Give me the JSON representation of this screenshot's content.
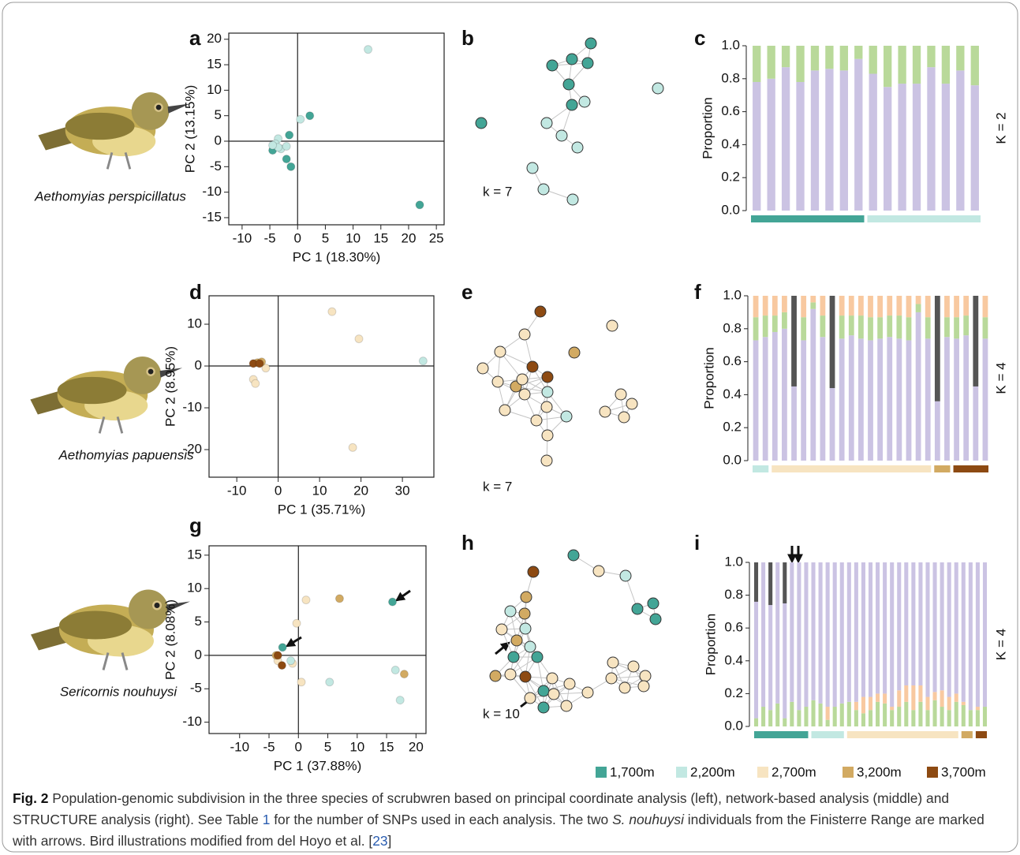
{
  "species": [
    "Aethomyias perspicillatus",
    "Aethomyias papuensis",
    "Sericornis nouhuysi"
  ],
  "legend": [
    {
      "label": "1,700m",
      "color": "#43a596"
    },
    {
      "label": "2,200m",
      "color": "#c2e8e2"
    },
    {
      "label": "2,700m",
      "color": "#f7e4c1"
    },
    {
      "label": "3,200m",
      "color": "#d2aa62"
    },
    {
      "label": "3,700m",
      "color": "#8d4a12"
    }
  ],
  "caption": {
    "label": "Fig. 2",
    "text_1": " Population-genomic subdivision in the three species of scrubwren based on principal coordinate analysis (left), network-based analysis (middle) and STRUCTURE analysis (right). See Table ",
    "table_ref": "1",
    "text_2": " for the number of SNPs used in each analysis. The two ",
    "species": "S. nouhuysi",
    "text_3": " individuals from the Finisterre Range are marked with arrows. Bird illustrations modified from del Hoyo et al. [",
    "ref": "23",
    "text_4": "]"
  },
  "chart_data": [
    {
      "type": "scatter",
      "panel": "a",
      "xlabel": "PC 1 (18.30%)",
      "ylabel": "PC 2 (13.15%)",
      "xlim": [
        -12.4,
        26.4
      ],
      "ylim": [
        -16.4,
        21.2
      ],
      "xticks": [
        -10,
        -5,
        0,
        5,
        10,
        15,
        20,
        25
      ],
      "yticks": [
        -15,
        -10,
        -5,
        0,
        5,
        10,
        15,
        20
      ],
      "series": [
        {
          "color": "#43a596",
          "x": [
            2.2,
            -1.5,
            -2,
            -1.2,
            -4.5,
            22
          ],
          "values": [
            5,
            1.2,
            -3.5,
            -5,
            -1.8,
            -12.5
          ]
        },
        {
          "color": "#c2e8e2",
          "x": [
            12.7,
            0.5,
            -3.5,
            -4,
            -3,
            -2,
            -3.5,
            -4.5
          ],
          "values": [
            18,
            4.3,
            0.5,
            -0.5,
            -1.5,
            -1,
            -1.2,
            -0.8
          ]
        }
      ]
    },
    {
      "type": "network",
      "panel": "b",
      "annotation": "k = 7",
      "node_colors": [
        "#43a596",
        "#43a596",
        "#43a596",
        "#43a596",
        "#43a596",
        "#43a596",
        "#43a596",
        "#c2e8e2",
        "#c2e8e2",
        "#c2e8e2",
        "#c2e8e2",
        "#c2e8e2",
        "#c2e8e2",
        "#c2e8e2",
        "#c2e8e2"
      ]
    },
    {
      "type": "stacked_bar",
      "panel": "c",
      "ylabel": "Proportion",
      "annotation": "K = 2",
      "ylim": [
        0,
        1
      ],
      "yticks": [
        {
          "value": 0,
          "label": "0.0"
        },
        0.2,
        0.4,
        0.6,
        0.8,
        {
          "value": 1,
          "label": "1.0"
        }
      ],
      "series": [
        {
          "color": "#cbc3e3",
          "values": [
            0.78,
            0.8,
            0.87,
            0.78,
            0.85,
            0.86,
            0.85,
            0.92,
            0.83,
            0.75,
            0.77,
            0.77,
            0.87,
            0.77,
            0.85,
            0.76
          ]
        },
        {
          "color": "#b9d99a",
          "values": [
            0.22,
            0.2,
            0.13,
            0.22,
            0.15,
            0.14,
            0.15,
            0.08,
            0.17,
            0.25,
            0.23,
            0.23,
            0.13,
            0.23,
            0.15,
            0.24
          ]
        }
      ],
      "sample_groups": [
        "#43a596",
        "#43a596",
        "#43a596",
        "#43a596",
        "#43a596",
        "#43a596",
        "#43a596",
        "#43a596",
        "#c2e8e2",
        "#c2e8e2",
        "#c2e8e2",
        "#c2e8e2",
        "#c2e8e2",
        "#c2e8e2",
        "#c2e8e2",
        "#c2e8e2"
      ]
    },
    {
      "type": "scatter",
      "panel": "d",
      "xlabel": "PC 1 (35.71%)",
      "ylabel": "PC 2 (8.95%)",
      "xlim": [
        -16.7,
        37.6
      ],
      "ylim": [
        -26.6,
        16.8
      ],
      "xticks": [
        -10,
        0,
        10,
        20,
        30
      ],
      "yticks": [
        -20,
        -10,
        0,
        10
      ],
      "series": [
        {
          "color": "#f7e4c1",
          "x": [
            13,
            19.5,
            18,
            -6,
            -5.5,
            -3
          ],
          "values": [
            13,
            6.5,
            -19.5,
            -3.2,
            -4.2,
            -0.5
          ]
        },
        {
          "color": "#d2aa62",
          "x": [
            -5,
            -4
          ],
          "values": [
            0.8,
            1
          ]
        },
        {
          "color": "#8d4a12",
          "x": [
            -6,
            -4.5
          ],
          "values": [
            0.6,
            0.6
          ]
        },
        {
          "color": "#c2e8e2",
          "x": [
            35
          ],
          "values": [
            1.2
          ]
        }
      ]
    },
    {
      "type": "network",
      "panel": "e",
      "annotation": "k = 7",
      "node_colors": [
        "#8d4a12",
        "#8d4a12",
        "#8d4a12",
        "#d2aa62",
        "#d2aa62",
        "#c2e8e2",
        "#c2e8e2",
        "#f7e4c1",
        "#f7e4c1",
        "#f7e4c1",
        "#f7e4c1",
        "#f7e4c1",
        "#f7e4c1",
        "#f7e4c1",
        "#f7e4c1",
        "#f7e4c1",
        "#f7e4c1",
        "#f7e4c1",
        "#f7e4c1",
        "#f7e4c1",
        "#f7e4c1",
        "#f7e4c1",
        "#f7e4c1"
      ]
    },
    {
      "type": "stacked_bar",
      "panel": "f",
      "ylabel": "Proportion",
      "annotation": "K = 4",
      "ylim": [
        0,
        1
      ],
      "yticks": [
        {
          "value": 0,
          "label": "0.0"
        },
        0.2,
        0.4,
        0.6,
        0.8,
        {
          "value": 1,
          "label": "1.0"
        }
      ],
      "series": [
        {
          "color": "#cbc3e3",
          "values": [
            0.73,
            0.75,
            0.78,
            0.8,
            0.45,
            0.73,
            0.92,
            0.75,
            0.44,
            0.74,
            0.76,
            0.74,
            0.73,
            0.74,
            0.75,
            0.74,
            0.73,
            0.9,
            0.74,
            0.36,
            0.75,
            0.74,
            0.76,
            0.45,
            0.74
          ]
        },
        {
          "color": "#b9d99a",
          "values": [
            0.14,
            0.13,
            0.1,
            0.1,
            0,
            0.14,
            0.04,
            0.13,
            0,
            0.14,
            0.12,
            0.14,
            0.14,
            0.13,
            0.13,
            0.14,
            0.14,
            0.05,
            0.13,
            0,
            0.12,
            0.13,
            0.12,
            0,
            0.13
          ]
        },
        {
          "color": "#f8c9a0",
          "values": [
            0.13,
            0.12,
            0.12,
            0.1,
            0,
            0.13,
            0.04,
            0.12,
            0,
            0.12,
            0.12,
            0.12,
            0.13,
            0.13,
            0.12,
            0.12,
            0.13,
            0.05,
            0.13,
            0,
            0.13,
            0.13,
            0.12,
            0,
            0.13
          ]
        },
        {
          "color": "#555555",
          "values": [
            0,
            0,
            0,
            0,
            0.55,
            0,
            0,
            0,
            0.56,
            0,
            0,
            0,
            0,
            0,
            0,
            0,
            0,
            0,
            0,
            0.64,
            0,
            0,
            0,
            0.55,
            0
          ]
        }
      ],
      "sample_groups": [
        "#c2e8e2",
        "#c2e8e2",
        "#f7e4c1",
        "#f7e4c1",
        "#f7e4c1",
        "#f7e4c1",
        "#f7e4c1",
        "#f7e4c1",
        "#f7e4c1",
        "#f7e4c1",
        "#f7e4c1",
        "#f7e4c1",
        "#f7e4c1",
        "#f7e4c1",
        "#f7e4c1",
        "#f7e4c1",
        "#f7e4c1",
        "#f7e4c1",
        "#f7e4c1",
        "#d2aa62",
        "#d2aa62",
        "#8d4a12",
        "#8d4a12",
        "#8d4a12",
        "#8d4a12"
      ]
    },
    {
      "type": "scatter",
      "panel": "g",
      "xlabel": "PC 1 (37.88%)",
      "ylabel": "PC 2 (8.08%)",
      "xlim": [
        -15.2,
        21.7
      ],
      "ylim": [
        -11.7,
        16.4
      ],
      "xticks": [
        -10,
        -5,
        0,
        5,
        10,
        15,
        20
      ],
      "yticks": [
        -10,
        -5,
        0,
        5,
        10,
        15
      ],
      "series": [
        {
          "color": "#f7e4c1",
          "x": [
            -0.3,
            1.3,
            0.5,
            -3.5,
            -1
          ],
          "values": [
            4.8,
            8.3,
            -4,
            -0.8,
            -1.2
          ]
        },
        {
          "color": "#c2e8e2",
          "x": [
            5.3,
            16.5,
            17.3,
            -1.3
          ],
          "values": [
            -4,
            -2.2,
            -6.7,
            -0.8
          ]
        },
        {
          "color": "#d2aa62",
          "x": [
            7,
            18,
            -3.8
          ],
          "values": [
            8.5,
            -2.8,
            0
          ]
        },
        {
          "color": "#8d4a12",
          "x": [
            -2.8,
            -3.5
          ],
          "values": [
            -1.5,
            0
          ]
        },
        {
          "color": "#43a596",
          "x": [
            16,
            -2.7
          ],
          "values": [
            8,
            1.2
          ]
        }
      ]
    },
    {
      "type": "network",
      "panel": "h",
      "annotation": "k = 10",
      "node_colors": [
        "#8d4a12",
        "#43a596",
        "#f7e4c1",
        "#c2e8e2",
        "#43a596",
        "#43a596",
        "#43a596",
        "#d2aa62",
        "#d2aa62",
        "#c2e8e2",
        "#c2e8e2",
        "#f7e4c1",
        "#d2aa62",
        "#43a596",
        "#c2e8e2",
        "#f7e4c1",
        "#d2aa62",
        "#8d4a12",
        "#43a596",
        "#f7e4c1",
        "#f7e4c1",
        "#43a596",
        "#f7e4c1",
        "#43a596",
        "#f7e4c1",
        "#f7e4c1",
        "#f7e4c1",
        "#f7e4c1",
        "#f7e4c1",
        "#f7e4c1",
        "#f7e4c1",
        "#f7e4c1",
        "#f7e4c1"
      ]
    },
    {
      "type": "stacked_bar",
      "panel": "i",
      "ylabel": "Proportion",
      "annotation": "K = 4",
      "ylim": [
        0,
        1
      ],
      "yticks": [
        {
          "value": 0,
          "label": "0.0"
        },
        0.2,
        0.4,
        0.6,
        0.8,
        {
          "value": 1,
          "label": "1.0"
        }
      ],
      "series": [
        {
          "color": "#b9d99a",
          "values": [
            0.05,
            0.12,
            0.1,
            0.14,
            0.05,
            0.15,
            0.1,
            0.12,
            0.16,
            0.14,
            0.04,
            0.12,
            0.14,
            0.15,
            0.1,
            0.08,
            0.1,
            0.15,
            0.14,
            0.1,
            0.12,
            0.15,
            0.1,
            0.15,
            0.1,
            0.16,
            0.12,
            0.1,
            0.15,
            0.13,
            0.1,
            0.1,
            0.12
          ]
        },
        {
          "color": "#f8c9a0",
          "values": [
            0,
            0,
            0,
            0,
            0,
            0,
            0,
            0,
            0,
            0,
            0.08,
            0,
            0,
            0,
            0.05,
            0.1,
            0.08,
            0.05,
            0.06,
            0.02,
            0.1,
            0.1,
            0.15,
            0.1,
            0.08,
            0.05,
            0.1,
            0.08,
            0.05,
            0.02,
            0,
            0.02,
            0
          ]
        },
        {
          "color": "#cbc3e3",
          "values": [
            0.71,
            0.88,
            0.64,
            0.86,
            0.7,
            0.85,
            0.9,
            0.88,
            0.84,
            0.86,
            0.88,
            0.88,
            0.86,
            0.85,
            0.85,
            0.82,
            0.82,
            0.8,
            0.8,
            0.88,
            0.78,
            0.75,
            0.75,
            0.75,
            0.82,
            0.79,
            0.78,
            0.82,
            0.8,
            0.85,
            0.9,
            0.88,
            0.88
          ]
        },
        {
          "color": "#555555",
          "values": [
            0.24,
            0,
            0.26,
            0,
            0.25,
            0,
            0,
            0,
            0,
            0,
            0,
            0,
            0,
            0,
            0,
            0,
            0,
            0,
            0,
            0,
            0,
            0,
            0,
            0,
            0,
            0,
            0,
            0,
            0,
            0,
            0,
            0,
            0
          ]
        }
      ],
      "sample_groups": [
        "#43a596",
        "#43a596",
        "#43a596",
        "#43a596",
        "#43a596",
        "#43a596",
        "#43a596",
        "#43a596",
        "#c2e8e2",
        "#c2e8e2",
        "#c2e8e2",
        "#c2e8e2",
        "#c2e8e2",
        "#f7e4c1",
        "#f7e4c1",
        "#f7e4c1",
        "#f7e4c1",
        "#f7e4c1",
        "#f7e4c1",
        "#f7e4c1",
        "#f7e4c1",
        "#f7e4c1",
        "#f7e4c1",
        "#f7e4c1",
        "#f7e4c1",
        "#f7e4c1",
        "#f7e4c1",
        "#f7e4c1",
        "#f7e4c1",
        "#d2aa62",
        "#d2aa62",
        "#8d4a12",
        "#8d4a12"
      ]
    }
  ]
}
